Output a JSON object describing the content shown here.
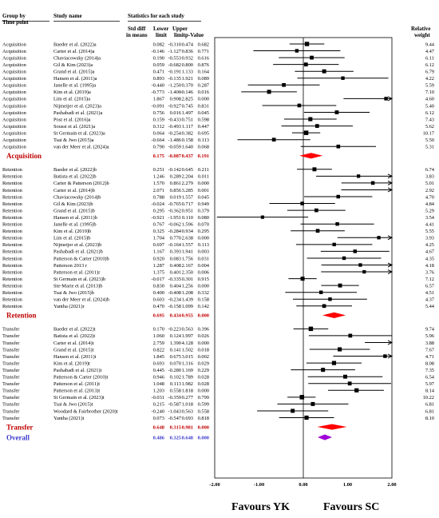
{
  "headers": {
    "group_by": "Group by",
    "time_point": "Time point",
    "study_name": "Study name",
    "stats_title": "Statistics for each study",
    "std_diff_1": "Std diff",
    "std_diff_2": "in means",
    "lower_1": "Lower",
    "lower_2": "limit",
    "upper_1": "Upper",
    "upper_2": "limit",
    "pvalue": "p-Value",
    "relweight_1": "Relative",
    "relweight_2": "weight"
  },
  "footer": {
    "favours_left": "Favours YK",
    "favours_right": "Favours SC"
  },
  "chart_data": {
    "type": "forest",
    "xlim": [
      -2.0,
      2.0
    ],
    "ticks": [
      "-2.00",
      "-1.00",
      "0.00",
      "1.00",
      "2.00"
    ],
    "grid": false,
    "groups": [
      {
        "name": "Acquisition",
        "studies": [
          {
            "tp": "Acquisition",
            "name": "Baeder et al. (2022)a",
            "es": "0.082",
            "lo": "-0.310",
            "hi": "0.474",
            "p": "0.682",
            "w": "9.44"
          },
          {
            "tp": "Acquisition",
            "name": "Carter et al. (2014)a",
            "es": "-0.146",
            "lo": "-1.127",
            "hi": "0.836",
            "p": "0.771",
            "w": "4.47"
          },
          {
            "tp": "Acquisition",
            "name": "Chaviacowsky (2014)a",
            "es": "0.190",
            "lo": "-0.553",
            "hi": "0.932",
            "p": "0.616",
            "w": "6.11"
          },
          {
            "tp": "Acquisition",
            "name": "Gil & Kim (2023)a",
            "es": "0.059",
            "lo": "-0.682",
            "hi": "0.800",
            "p": "0.876",
            "w": "6.12"
          },
          {
            "tp": "Acquisition",
            "name": "Grand et al. (2015)a",
            "es": "0.471",
            "lo": "-0.191",
            "hi": "1.133",
            "p": "0.164",
            "w": "6.79"
          },
          {
            "tp": "Acquisition",
            "name": "Hansen et al. (2011)a",
            "es": "0.893",
            "lo": "-0.135",
            "hi": "1.921",
            "p": "0.089",
            "w": "4.22"
          },
          {
            "tp": "Acquisition",
            "name": "Janelle et al. (1995)a",
            "es": "-0.440",
            "lo": "-1.250",
            "hi": "0.370",
            "p": "0.287",
            "w": "5.59"
          },
          {
            "tp": "Acquisition",
            "name": "Kim et al. (2019)a",
            "es": "-0.773",
            "lo": "-1.400",
            "hi": "-0.146",
            "p": "0.016",
            "w": "7.10"
          },
          {
            "tp": "Acquisition",
            "name": "Lim et al. (2015)a",
            "es": "1.867",
            "lo": "0.908",
            "hi": "2.825",
            "p": "0.000",
            "w": "4.60"
          },
          {
            "tp": "Acquisition",
            "name": "Nijmeijer et al. (2023)a",
            "es": "-0.091",
            "lo": "-0.927",
            "hi": "0.745",
            "p": "0.831",
            "w": "5.40"
          },
          {
            "tp": "Acquisition",
            "name": "Pashabadi et al. (2021)a",
            "es": "0.756",
            "lo": "0.016",
            "hi": "1.497",
            "p": "0.045",
            "w": "6.12"
          },
          {
            "tp": "Acquisition",
            "name": "Post et al. (2016)a",
            "es": "0.159",
            "lo": "-0.433",
            "hi": "0.751",
            "p": "0.598",
            "w": "7.43"
          },
          {
            "tp": "Acquisition",
            "name": "Soussi et al. (2021)a",
            "es": "0.312",
            "lo": "-0.493",
            "hi": "1.117",
            "p": "0.447",
            "w": "5.62"
          },
          {
            "tp": "Acquisition",
            "name": "St Germain et al. (2023)a",
            "es": "0.064",
            "lo": "-0.254",
            "hi": "0.382",
            "p": "0.695",
            "w": "10.17"
          },
          {
            "tp": "Acquisition",
            "name": "Tsai & Jwo (2015)a",
            "es": "-0.664",
            "lo": "-1.486",
            "hi": "0.158",
            "p": "0.113",
            "w": "5.50"
          },
          {
            "tp": "Acquisition",
            "name": "van der Meer et al. (2024)a",
            "es": "0.790",
            "lo": "-0.059",
            "hi": "1.640",
            "p": "0.068",
            "w": "5.31"
          }
        ],
        "pooled": {
          "label": "Acquisition",
          "es": "0.175",
          "lo": "-0.087",
          "hi": "0.437",
          "p": "0.191"
        }
      },
      {
        "name": "Retention",
        "studies": [
          {
            "tp": "Retention",
            "name": "Baeder et al. (2022)b",
            "es": "0.251",
            "lo": "-0.142",
            "hi": "0.645",
            "p": "0.211",
            "w": "6.74"
          },
          {
            "tp": "Retention",
            "name": "Batista et al. (2022)b",
            "es": "1.246",
            "lo": "0.289",
            "hi": "2.204",
            "p": "0.011",
            "w": "3.83"
          },
          {
            "tp": "Retention",
            "name": "Carter & Patterson (2012)b",
            "es": "1.570",
            "lo": "0.861",
            "hi": "2.279",
            "p": "0.000",
            "w": "5.01"
          },
          {
            "tp": "Retention",
            "name": "Carter et al. (2014)b",
            "es": "2.071",
            "lo": "0.856",
            "hi": "3.285",
            "p": "0.001",
            "w": "2.92"
          },
          {
            "tp": "Retention",
            "name": "Chaviacowsky (2014)b",
            "es": "0.788",
            "lo": "0.019",
            "hi": "1.557",
            "p": "0.045",
            "w": "4.70"
          },
          {
            "tp": "Retention",
            "name": "Gil & Kim (2023)b",
            "es": "-0.024",
            "lo": "-0.765",
            "hi": "0.717",
            "p": "0.949",
            "w": "4.84"
          },
          {
            "tp": "Retention",
            "name": "Grand et al. (2015)b",
            "es": "0.295",
            "lo": "-0.362",
            "hi": "0.951",
            "p": "0.379",
            "w": "5.29"
          },
          {
            "tp": "Retention",
            "name": "Hansen et al. (2011)b",
            "es": "-0.921",
            "lo": "-1.951",
            "hi": "0.110",
            "p": "0.080",
            "w": "3.54"
          },
          {
            "tp": "Retention",
            "name": "Janelle et al. (1995)b",
            "es": "0.767",
            "lo": "-0.062",
            "hi": "1.596",
            "p": "0.070",
            "w": "4.41"
          },
          {
            "tp": "Retention",
            "name": "Kim et al. (2019)b",
            "es": "0.325",
            "lo": "-0.284",
            "hi": "0.934",
            "p": "0.295",
            "w": "5.55"
          },
          {
            "tp": "Retention",
            "name": "Lim et al. (2015)b",
            "es": "1.704",
            "lo": "0.770",
            "hi": "2.638",
            "p": "0.000",
            "w": "3.93"
          },
          {
            "tp": "Retention",
            "name": "Nijmeijer et al. (2023)b",
            "es": "0.697",
            "lo": "-0.164",
            "hi": "1.557",
            "p": "0.113",
            "w": "4.25"
          },
          {
            "tp": "Retention",
            "name": "Pashabadi et al. (2021)b",
            "es": "1.167",
            "lo": "0.393",
            "hi": "1.941",
            "p": "0.003",
            "w": "4.67"
          },
          {
            "tp": "Retention",
            "name": "Patterson & Carter (2010)b",
            "es": "0.920",
            "lo": "0.083",
            "hi": "1.756",
            "p": "0.031",
            "w": "4.35"
          },
          {
            "tp": "Retention",
            "name": "Patterson 2013 r",
            "es": "1.287",
            "lo": "0.408",
            "hi": "2.167",
            "p": "0.004",
            "w": "4.18"
          },
          {
            "tp": "Retention",
            "name": "Patterson et al. (2011)r",
            "es": "1.375",
            "lo": "0.401",
            "hi": "2.350",
            "p": "0.006",
            "w": "3.76"
          },
          {
            "tp": "Retention",
            "name": "St Germain et al. (2023)b",
            "es": "-0.017",
            "lo": "-0.335",
            "hi": "0.301",
            "p": "0.915",
            "w": "7.12"
          },
          {
            "tp": "Retention",
            "name": "Ste-Marie et al. (2013)b",
            "es": "0.830",
            "lo": "0.404",
            "hi": "1.256",
            "p": "0.000",
            "w": "6.57"
          },
          {
            "tp": "Retention",
            "name": "Tsai & Jwo (2015)b",
            "es": "0.400",
            "lo": "-0.408",
            "hi": "1.208",
            "p": "0.332",
            "w": "4.51"
          },
          {
            "tp": "Retention",
            "name": "van der Meer et al. (2024)b",
            "es": "0.603",
            "lo": "-0.234",
            "hi": "1.439",
            "p": "0.158",
            "w": "4.37"
          },
          {
            "tp": "Retention",
            "name": "Yantha (2021)r",
            "es": "0.470",
            "lo": "-0.158",
            "hi": "1.099",
            "p": "0.142",
            "w": "5.44"
          }
        ],
        "pooled": {
          "label": "Retention",
          "es": "0.695",
          "lo": "0.434",
          "hi": "0.955",
          "p": "0.000"
        }
      },
      {
        "name": "Transfer",
        "studies": [
          {
            "tp": "Transfer",
            "name": "Baeder et al. (2022)t",
            "es": "0.170",
            "lo": "-0.223",
            "hi": "0.563",
            "p": "0.396",
            "w": "9.74"
          },
          {
            "tp": "Transfer",
            "name": "Batista et al. (2022)t",
            "es": "1.060",
            "lo": "0.124",
            "hi": "1.997",
            "p": "0.026",
            "w": "5.96"
          },
          {
            "tp": "Transfer",
            "name": "Carter et al. (2014)t",
            "es": "2.759",
            "lo": "1.390",
            "hi": "4.128",
            "p": "0.000",
            "w": "3.88"
          },
          {
            "tp": "Transfer",
            "name": "Grand et al. (2015)t",
            "es": "0.822",
            "lo": "0.141",
            "hi": "1.502",
            "p": "0.018",
            "w": "7.67"
          },
          {
            "tp": "Transfer",
            "name": "Hansen et al. (2011)t",
            "es": "1.845",
            "lo": "0.675",
            "hi": "3.015",
            "p": "0.002",
            "w": "4.71"
          },
          {
            "tp": "Transfer",
            "name": "Kim et al. (2019)t",
            "es": "0.693",
            "lo": "0.070",
            "hi": "1.316",
            "p": "0.029",
            "w": "8.08"
          },
          {
            "tp": "Transfer",
            "name": "Pashabadi et al. (2021)t",
            "es": "0.445",
            "lo": "-0.280",
            "hi": "1.169",
            "p": "0.229",
            "w": "7.35"
          },
          {
            "tp": "Transfer",
            "name": "Patterson & Carter (2010)t",
            "es": "0.946",
            "lo": "0.102",
            "hi": "1.789",
            "p": "0.028",
            "w": "6.54"
          },
          {
            "tp": "Transfer",
            "name": "Patterson et al. (2011)t",
            "es": "1.048",
            "lo": "0.113",
            "hi": "1.982",
            "p": "0.028",
            "w": "5.97"
          },
          {
            "tp": "Transfer",
            "name": "Patterson et al. (2013)t",
            "es": "1.203",
            "lo": "0.558",
            "hi": "1.818",
            "p": "0.000",
            "w": "8.14"
          },
          {
            "tp": "Transfer",
            "name": "St Germain et al. (2023)t",
            "es": "-0.031",
            "lo": "-0.359",
            "hi": "0.277",
            "p": "0.799",
            "w": "10.22"
          },
          {
            "tp": "Transfer",
            "name": "Tsai & Jwo (2015)t",
            "es": "0.215",
            "lo": "-0.587",
            "hi": "1.018",
            "p": "0.599",
            "w": "6.81"
          },
          {
            "tp": "Transfer",
            "name": "Woodard & Fairbrother (2020)t",
            "es": "-0.240",
            "lo": "-1.043",
            "hi": "0.563",
            "p": "0.558",
            "w": "6.81"
          },
          {
            "tp": "Transfer",
            "name": "Yantha (2021)t",
            "es": "0.073",
            "lo": "-0.547",
            "hi": "0.693",
            "p": "0.818",
            "w": "8.10"
          }
        ],
        "pooled": {
          "label": "Transfer",
          "es": "0.648",
          "lo": "0.315",
          "hi": "0.981",
          "p": "0.000"
        }
      }
    ],
    "overall": {
      "label": "Overall",
      "es": "0.486",
      "lo": "0.325",
      "hi": "0.648",
      "p": "0.000"
    },
    "colors": {
      "group_label": "#c00000",
      "overall_label": "#3a3acc",
      "diamond": "#ff0000",
      "overall_diamond": "#a000d8",
      "pooled_text": "#c00000",
      "overall_text": "#3a3acc"
    }
  }
}
